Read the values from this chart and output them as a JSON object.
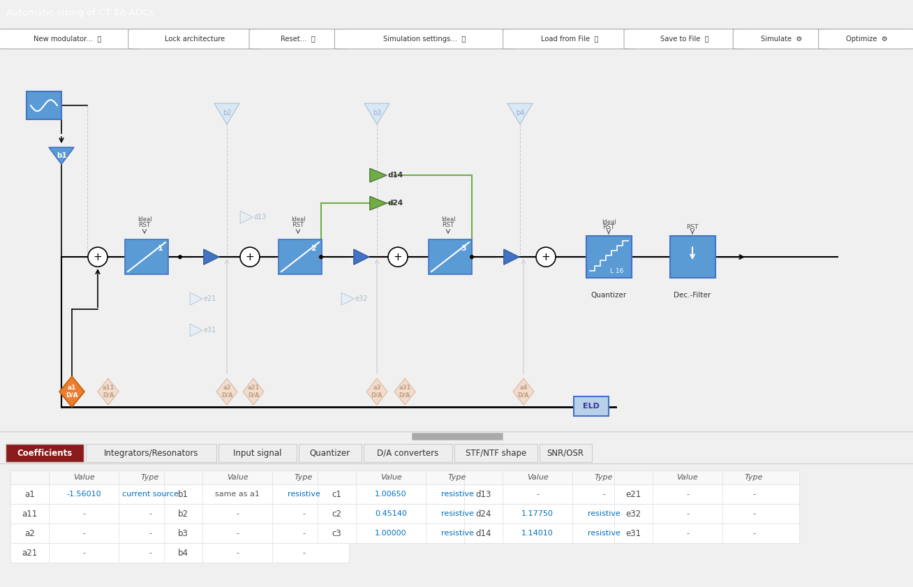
{
  "title_bar": "Automatic sizing of CT ΣΔ-ADCs",
  "title_bar_color": "#8B1A1A",
  "title_text_color": "#FFFFFF",
  "toolbar_bg": "#F0F0F0",
  "toolbar_buttons": [
    "New modulator...  ⧉",
    "Lock architecture",
    "Reset...  ⧉",
    "Simulation settings...  ⧉",
    "Load from File  ⧉",
    "Save to File  ⧉",
    "Simulate  ⚙",
    "Optimize  ⚙"
  ],
  "diagram_bg": "#FFFFFF",
  "bottom_panel_bg": "#F5F5F5",
  "tab_active": "Coefficients",
  "tab_active_color": "#8B1A1A",
  "tabs": [
    "Coefficients",
    "Integrators/Resonators",
    "Input signal",
    "Quantizer",
    "D/A converters",
    "STF/NTF shape",
    "SNR/OSR"
  ],
  "table_col1_labels": [
    "a1",
    "a11",
    "a2",
    "a21"
  ],
  "table_col1_values": [
    "-1.56010",
    "-",
    "-",
    "-"
  ],
  "table_col1_types": [
    "current source",
    "-",
    "-",
    "-"
  ],
  "table_col2_labels": [
    "b1",
    "b2",
    "b3",
    "b4"
  ],
  "table_col2_values": [
    "same as a1",
    "-",
    "-",
    "-"
  ],
  "table_col2_types": [
    "resistive",
    "-",
    "-",
    "-"
  ],
  "table_col3_labels": [
    "c1",
    "c2",
    "c3"
  ],
  "table_col3_values": [
    "1.00650",
    "0.45140",
    "1.00000"
  ],
  "table_col3_types": [
    "resistive",
    "resistive",
    "resistive"
  ],
  "table_col4_labels": [
    "d13",
    "d24",
    "d14"
  ],
  "table_col4_values": [
    "-",
    "1.17750",
    "1.14010"
  ],
  "table_col4_types": [
    "-",
    "resistive",
    "resistive"
  ],
  "table_col5_labels": [
    "e21",
    "e32",
    "e31"
  ],
  "table_col5_values": [
    "-",
    "-",
    "-"
  ],
  "table_col5_types": [
    "-",
    "-",
    "-"
  ],
  "integrator_blue": "#5B9BD5",
  "integrator_dark": "#4472C4",
  "arrow_blue": "#4472C4",
  "green_arrow": "#70AD47",
  "faded_arrow": "#D9D9D9",
  "orange_diamond": "#ED7D31",
  "sum_circle_color": "#000000",
  "line_color": "#000000",
  "faded_color": "#BFBFBF",
  "eld_color": "#5B9BD5",
  "separator_line": "#CCCCCC"
}
